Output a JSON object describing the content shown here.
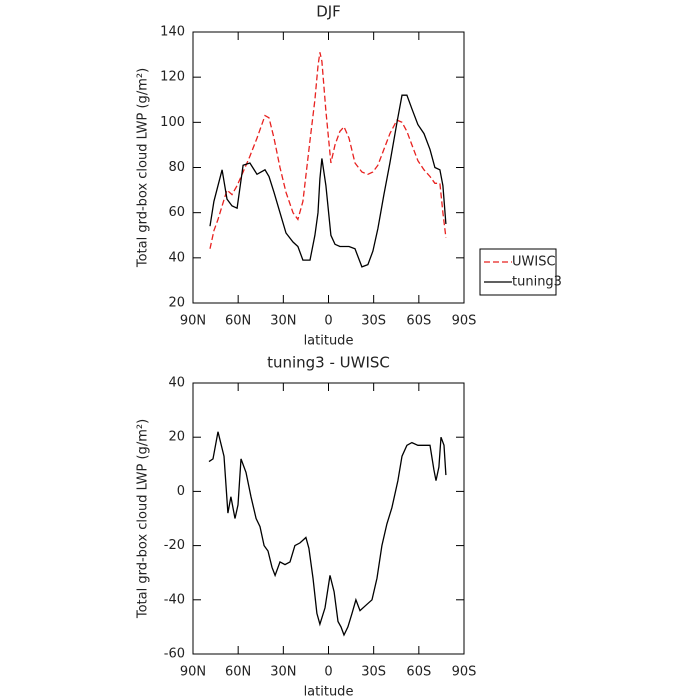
{
  "chart_data": [
    {
      "type": "line",
      "title": "DJF",
      "xlabel": "latitude",
      "ylabel": "Total grd-box cloud LWP (g/m²)",
      "xlim": [
        90,
        -90
      ],
      "ylim": [
        20,
        140
      ],
      "xticks": [
        {
          "value": 90,
          "label": "90N"
        },
        {
          "value": 60,
          "label": "60N"
        },
        {
          "value": 30,
          "label": "30N"
        },
        0,
        {
          "value": -30,
          "label": "30S"
        },
        {
          "value": -60,
          "label": "60S"
        },
        {
          "value": -90,
          "label": "90S"
        }
      ],
      "yticks": [
        20,
        40,
        60,
        80,
        100,
        120,
        140
      ],
      "legend": "right",
      "x": [
        78.7,
        76.1,
        73.4,
        70.7,
        67.4,
        64.1,
        60.7,
        56.7,
        52.2,
        47.5,
        42.2,
        39.5,
        36.2,
        32.2,
        28.2,
        23.6,
        20.3,
        17,
        12.3,
        9,
        7,
        5.7,
        4.4,
        1.7,
        -1.6,
        -4.3,
        -7.6,
        -10.3,
        -13.6,
        -17.6,
        -22.2,
        -26.2,
        -29.5,
        -32.8,
        -36.8,
        -40.8,
        -45.5,
        -48.8,
        -52.1,
        -55.4,
        -59.4,
        -63.4,
        -67.4,
        -70.7,
        -74,
        -76,
        -78
      ],
      "series": [
        {
          "name": "UWISC",
          "color": "#e8211f",
          "dashed": true,
          "values": [
            44,
            52,
            57,
            63,
            70,
            68,
            72,
            78,
            85,
            93,
            103,
            102,
            93,
            80,
            69,
            60,
            57,
            65,
            92,
            110,
            125,
            131,
            127,
            105,
            82,
            90,
            96,
            98,
            93,
            82,
            78,
            77,
            78,
            81,
            88,
            95,
            101,
            100,
            96,
            90,
            83,
            79,
            76,
            73,
            73,
            60,
            49
          ]
        },
        {
          "name": "tuning3",
          "color": "#000000",
          "dashed": false,
          "values": [
            54,
            65,
            72,
            79,
            66,
            63,
            62,
            81,
            82,
            77,
            79,
            76,
            69,
            60,
            51,
            47,
            45,
            39,
            39,
            50,
            60,
            75,
            84,
            72,
            50,
            46,
            45,
            45,
            45,
            44,
            36,
            37,
            43,
            53,
            68,
            82,
            100,
            112,
            112,
            106,
            99,
            95,
            88,
            80,
            79,
            72,
            55
          ]
        }
      ]
    },
    {
      "type": "line",
      "title": "tuning3 - UWISC",
      "xlabel": "latitude",
      "ylabel": "Total grd-box cloud LWP (g/m²)",
      "xlim": [
        90,
        -90
      ],
      "ylim": [
        -60,
        40
      ],
      "xticks": [
        {
          "value": 90,
          "label": "90N"
        },
        {
          "value": 60,
          "label": "60N"
        },
        {
          "value": 30,
          "label": "30N"
        },
        0,
        {
          "value": -30,
          "label": "30S"
        },
        {
          "value": -60,
          "label": "60S"
        },
        {
          "value": -90,
          "label": "90S"
        }
      ],
      "yticks": [
        -60,
        -40,
        -20,
        0,
        20,
        40
      ],
      "color": "#000000",
      "x": [
        79.4,
        76.7,
        73.4,
        69.4,
        66.8,
        64.8,
        62.1,
        60.1,
        58.1,
        54.8,
        51.5,
        48.1,
        45.5,
        42.8,
        40.2,
        37.5,
        35.5,
        32.2,
        28.9,
        25.6,
        22.3,
        18.9,
        15,
        13,
        10.3,
        7.7,
        5.7,
        2.3,
        -1,
        -3.7,
        -6.3,
        -8.3,
        -10.3,
        -12.9,
        -15.6,
        -18.2,
        -20.9,
        -24.9,
        -28.9,
        -32.2,
        -35.5,
        -38.8,
        -42.1,
        -46.1,
        -48.8,
        -52.1,
        -55.4,
        -59.4,
        -63.4,
        -67.4,
        -70,
        -71.4,
        -73.3,
        -74.7,
        -76.7,
        -78
      ],
      "values": [
        11,
        12,
        22,
        13,
        -8,
        -2,
        -10,
        -5,
        12,
        7,
        -2,
        -10,
        -13,
        -20,
        -22,
        -28,
        -31,
        -26,
        -27,
        -26,
        -20,
        -19,
        -17,
        -21,
        -32,
        -45,
        -49,
        -43,
        -31,
        -37,
        -48,
        -50,
        -53,
        -50,
        -45,
        -40,
        -44,
        -42,
        -40,
        -32,
        -20,
        -12,
        -6,
        4,
        13,
        17,
        18,
        17,
        17,
        17,
        8,
        4,
        9,
        20,
        17,
        6
      ]
    }
  ]
}
